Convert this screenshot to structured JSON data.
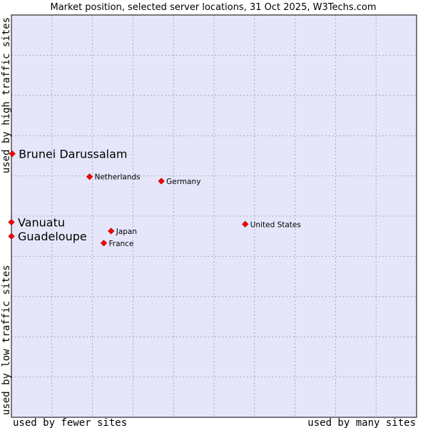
{
  "chart_data": {
    "type": "scatter",
    "title": "Market position, selected server locations, 31 Oct 2025, W3Techs.com",
    "xlabel_left": "used by fewer sites",
    "xlabel_right": "used by many sites",
    "ylabel_bottom": "used by low traffic sites",
    "ylabel_top": "used by high traffic sites",
    "xlim": [
      0,
      10
    ],
    "ylim": [
      0,
      10
    ],
    "grid": true,
    "point_color": "#ff0000",
    "plot_background": "#e6e6fa",
    "points": [
      {
        "name": "Brunei Darussalam",
        "x": 0.02,
        "y": 6.55,
        "highlight": true
      },
      {
        "name": "Vanuatu",
        "x": 0.0,
        "y": 4.85,
        "highlight": true
      },
      {
        "name": "Guadeloupe",
        "x": 0.0,
        "y": 4.5,
        "highlight": true
      },
      {
        "name": "Netherlands",
        "x": 1.93,
        "y": 5.98,
        "highlight": false
      },
      {
        "name": "Germany",
        "x": 3.7,
        "y": 5.87,
        "highlight": false
      },
      {
        "name": "United States",
        "x": 5.77,
        "y": 4.8,
        "highlight": false
      },
      {
        "name": "Japan",
        "x": 2.46,
        "y": 4.63,
        "highlight": false
      },
      {
        "name": "France",
        "x": 2.28,
        "y": 4.33,
        "highlight": false
      }
    ]
  }
}
